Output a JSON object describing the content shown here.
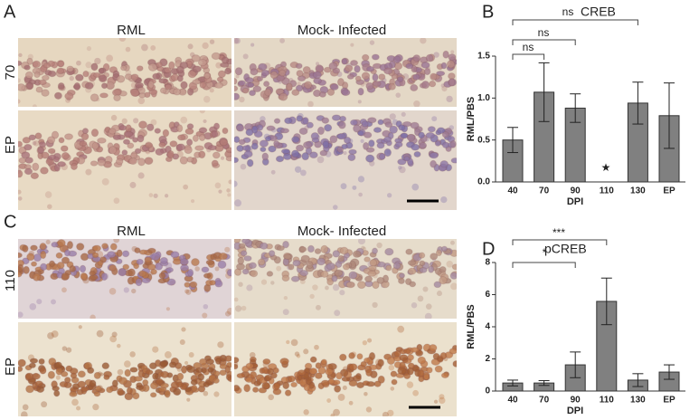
{
  "figure": {
    "panels": [
      {
        "label": "A",
        "columns": [
          "RML",
          "Mock- Infected"
        ],
        "rows": [
          "70",
          "EP"
        ]
      },
      {
        "label": "C",
        "columns": [
          "RML",
          "Mock- Infected"
        ],
        "rows": [
          "110",
          "EP"
        ]
      }
    ]
  },
  "chart_data": [
    {
      "type": "bar",
      "panel": "B",
      "title": "CREB",
      "y_label": "RML/PBS",
      "x_label": "DPI",
      "categories": [
        "40",
        "70",
        "90",
        "110",
        "130",
        "EP"
      ],
      "values": [
        0.5,
        1.07,
        0.88,
        null,
        0.94,
        0.79
      ],
      "errors": [
        0.15,
        0.35,
        0.17,
        null,
        0.25,
        0.39
      ],
      "color": "#808080",
      "ylim": [
        0,
        1.5
      ],
      "yticks": [
        {
          "value": 0,
          "label": "0.0"
        },
        {
          "value": 0.5,
          "label": "0.5"
        },
        {
          "value": 1,
          "label": "1.0"
        },
        {
          "value": 1.5,
          "label": "1.5"
        }
      ],
      "annotations": [
        "ns",
        "ns",
        "ns",
        "★"
      ]
    },
    {
      "type": "bar",
      "panel": "D",
      "title": "pCREB",
      "y_label": "RML/PBS",
      "x_label": "DPI",
      "categories": [
        "40",
        "70",
        "90",
        "110",
        "130",
        "EP"
      ],
      "values": [
        0.5,
        0.5,
        1.63,
        5.58,
        0.68,
        1.18
      ],
      "errors": [
        0.18,
        0.15,
        0.8,
        1.45,
        0.4,
        0.45
      ],
      "color": "#808080",
      "ylim": [
        0,
        8
      ],
      "yticks": [
        0,
        2,
        4,
        6,
        8
      ],
      "annotations": [
        "***",
        "*"
      ]
    }
  ]
}
